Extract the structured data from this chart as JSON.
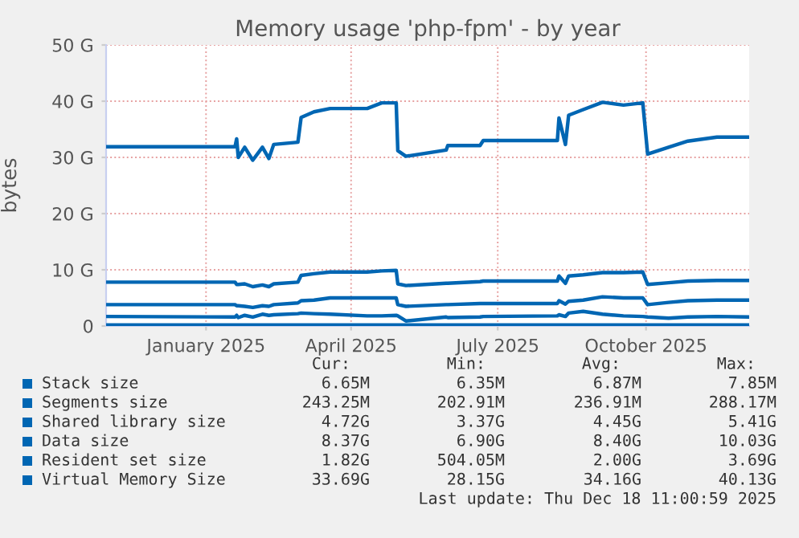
{
  "chart_data": {
    "type": "line",
    "title": "Memory usage 'php-fpm' - by year",
    "ylabel": "bytes",
    "x": [
      "2024-11-14",
      "2025-02-02",
      "2025-02-03",
      "2025-02-04",
      "2025-02-08",
      "2025-02-13",
      "2025-02-19",
      "2025-02-23",
      "2025-02-26",
      "2025-03-13",
      "2025-03-15",
      "2025-03-23",
      "2025-04-02",
      "2025-04-25",
      "2025-05-04",
      "2025-05-13",
      "2025-05-14",
      "2025-05-19",
      "2025-06-13",
      "2025-06-14",
      "2025-07-04",
      "2025-07-06",
      "2025-08-21",
      "2025-08-22",
      "2025-08-26",
      "2025-08-28",
      "2025-09-06",
      "2025-09-18",
      "2025-10-01",
      "2025-10-13",
      "2025-10-16",
      "2025-10-29",
      "2025-11-10",
      "2025-11-28",
      "2025-12-18"
    ],
    "series": [
      {
        "name": "Stack size",
        "color": "#0066b3",
        "x": [
          "2024-11-14",
          "2025-12-18"
        ],
        "values": [
          0,
          0
        ]
      },
      {
        "name": "Segments size",
        "color": "#0066b3",
        "x": [
          "2024-11-14",
          "2025-12-18"
        ],
        "values": [
          0.2,
          0.2
        ]
      },
      {
        "name": "Shared library size",
        "color": "#0066b3",
        "values": [
          3.8,
          3.8,
          3.6,
          3.6,
          3.5,
          3.3,
          3.6,
          3.5,
          3.8,
          4.1,
          4.5,
          4.6,
          5.0,
          5.0,
          5.0,
          5.0,
          3.8,
          3.5,
          3.8,
          3.8,
          4.0,
          4.0,
          4.0,
          4.5,
          3.9,
          4.4,
          4.6,
          5.2,
          5.0,
          5.0,
          3.8,
          4.2,
          4.5,
          4.6,
          4.6
        ]
      },
      {
        "name": "Data size",
        "color": "#0066b3",
        "values": [
          7.8,
          7.8,
          7.4,
          7.4,
          7.5,
          7.0,
          7.3,
          7.0,
          7.5,
          7.8,
          9.0,
          9.3,
          9.6,
          9.6,
          9.8,
          9.9,
          7.5,
          7.2,
          7.6,
          7.6,
          7.9,
          8.0,
          8.0,
          8.9,
          7.6,
          8.9,
          9.1,
          9.5,
          9.5,
          9.6,
          7.4,
          7.7,
          8.0,
          8.1,
          8.1
        ]
      },
      {
        "name": "Resident set size",
        "color": "#0066b3",
        "values": [
          1.7,
          1.6,
          1.9,
          1.5,
          1.9,
          1.6,
          2.1,
          1.9,
          2.0,
          2.2,
          2.3,
          2.2,
          2.1,
          1.8,
          1.8,
          1.9,
          1.8,
          0.9,
          1.6,
          1.5,
          1.6,
          1.7,
          1.8,
          2.0,
          1.7,
          2.3,
          2.6,
          2.1,
          1.8,
          1.7,
          1.6,
          1.4,
          1.6,
          1.7,
          1.6
        ]
      },
      {
        "name": "Virtual Memory Size",
        "color": "#0066b3",
        "values": [
          31.9,
          31.9,
          33.3,
          30.0,
          31.8,
          29.5,
          31.8,
          29.8,
          32.3,
          32.7,
          37.1,
          38.1,
          38.7,
          38.7,
          39.7,
          39.7,
          31.2,
          30.2,
          31.3,
          32.1,
          32.1,
          33.0,
          33.0,
          37.0,
          32.3,
          37.5,
          38.5,
          39.8,
          39.3,
          39.7,
          30.6,
          31.8,
          32.9,
          33.6,
          33.6
        ]
      }
    ],
    "xlim": [
      "2024-11-14",
      "2025-12-18"
    ],
    "xticks": [
      {
        "value": "2025-01-15",
        "label": "January 2025"
      },
      {
        "value": "2025-04-15",
        "label": "April 2025"
      },
      {
        "value": "2025-07-15",
        "label": "July 2025"
      },
      {
        "value": "2025-10-15",
        "label": "October 2025"
      }
    ],
    "ylim": [
      0,
      50
    ],
    "yticks": [
      0,
      {
        "value": 10,
        "label": "10 G"
      },
      {
        "value": 20,
        "label": "20 G"
      },
      {
        "value": 30,
        "label": "30 G"
      },
      {
        "value": 40,
        "label": "40 G"
      },
      {
        "value": 50,
        "label": "50 G"
      }
    ],
    "grid": true,
    "legend": "bottom",
    "marker": "none",
    "line_style": "solid",
    "annotations": [
      "Cur:",
      "Min:",
      "Avg:",
      "Max:",
      "6.65M",
      "6.35M",
      "6.87M",
      "7.85M",
      "243.25M",
      "202.91M",
      "236.91M",
      "288.17M",
      "4.72G",
      "3.37G",
      "4.45G",
      "5.41G",
      "8.37G",
      "6.90G",
      "8.40G",
      "10.03G",
      "1.82G",
      "504.05M",
      "2.00G",
      "3.69G",
      "33.69G",
      "28.15G",
      "34.16G",
      "40.13G",
      "Last update: Thu Dec 18 11:00:59 2025"
    ]
  }
}
